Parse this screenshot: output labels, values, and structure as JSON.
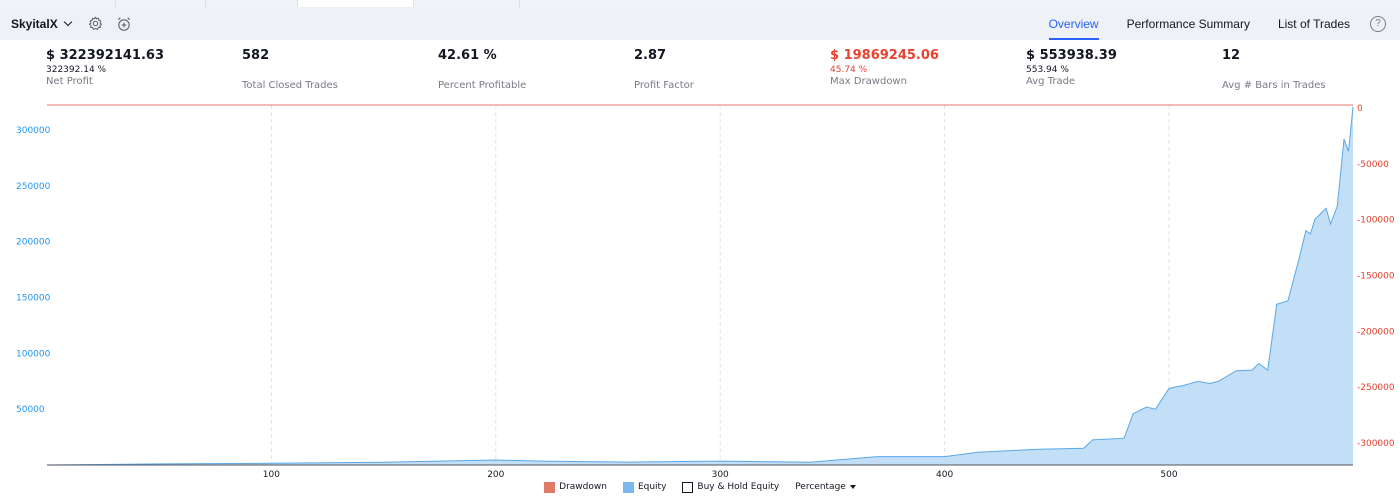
{
  "header": {
    "strategy_name": "SkyitalX",
    "icons": [
      "gear-icon",
      "alarm-plus-icon",
      "help-icon"
    ],
    "tabs": [
      {
        "label": "Overview",
        "active": true
      },
      {
        "label": "Performance Summary",
        "active": false
      },
      {
        "label": "List of Trades",
        "active": false
      }
    ],
    "help_label": "?"
  },
  "metrics": [
    {
      "value": "$ 322392141.63",
      "sub": "322392.14 %",
      "label": "Net Profit",
      "color": "#131722"
    },
    {
      "value": "582",
      "sub": "",
      "label": "Total Closed Trades",
      "color": "#131722"
    },
    {
      "value": "42.61 %",
      "sub": "",
      "label": "Percent Profitable",
      "color": "#131722"
    },
    {
      "value": "2.87",
      "sub": "",
      "label": "Profit Factor",
      "color": "#131722"
    },
    {
      "value": "$ 19869245.06",
      "sub": "45.74 %",
      "label": "Max Drawdown",
      "color": "#e8412e"
    },
    {
      "value": "$ 553938.39",
      "sub": "553.94 %",
      "label": "Avg Trade",
      "color": "#131722"
    },
    {
      "value": "12",
      "sub": "",
      "label": "Avg # Bars in Trades",
      "color": "#131722"
    }
  ],
  "legend": {
    "drawdown": "Drawdown",
    "equity": "Equity",
    "buy_hold": "Buy & Hold Equity",
    "mode": "Percentage"
  },
  "colors": {
    "equity_fill": "#c3def7",
    "equity_line": "#5aa8e6",
    "drawdown": "#e07a68",
    "left_axis": "#2196f3",
    "right_axis": "#e8412e",
    "accent": "#2962ff"
  },
  "chart_data": {
    "type": "area",
    "x_ticks": [
      100,
      200,
      300,
      400,
      500
    ],
    "x_tick_labels": [
      "100",
      "200",
      "300",
      "400",
      "500"
    ],
    "xlim": [
      0,
      582
    ],
    "left_axis": {
      "ticks": [
        50000,
        100000,
        150000,
        200000,
        250000,
        300000
      ],
      "labels": [
        "50000",
        "100000",
        "150000",
        "200000",
        "250000",
        "300000"
      ],
      "ylim": [
        0,
        322500
      ]
    },
    "right_axis": {
      "ticks": [
        0,
        -50000,
        -100000,
        -150000,
        -200000,
        -250000,
        -300000
      ],
      "labels": [
        "0",
        "-50000",
        "-100000",
        "-150000",
        "-200000",
        "-250000",
        "-300000"
      ],
      "ylim": [
        -322500,
        0
      ]
    },
    "series": [
      {
        "name": "Equity",
        "x": [
          0,
          50,
          100,
          150,
          200,
          220,
          260,
          300,
          340,
          370,
          400,
          415,
          440,
          462,
          466,
          480,
          484,
          490,
          494,
          500,
          503,
          506,
          513,
          518,
          522,
          530,
          537,
          540,
          544,
          548,
          553,
          556,
          558,
          561,
          563,
          565,
          567,
          570,
          572,
          575,
          578,
          580,
          582
        ],
        "y": [
          0,
          1000,
          1500,
          2500,
          4500,
          3500,
          2600,
          3500,
          2500,
          7500,
          7500,
          11500,
          14000,
          15000,
          22500,
          24000,
          46000,
          52000,
          50000,
          68500,
          70000,
          71000,
          75000,
          73000,
          75000,
          84500,
          85000,
          91000,
          85000,
          144000,
          147000,
          170000,
          185000,
          210000,
          207000,
          220000,
          224000,
          230000,
          216000,
          232000,
          292000,
          281000,
          321000
        ]
      },
      {
        "name": "Drawdown",
        "x": [
          0,
          582
        ],
        "y": [
          0,
          0
        ]
      }
    ],
    "grid": true,
    "legend_placement": "bottom-center"
  }
}
